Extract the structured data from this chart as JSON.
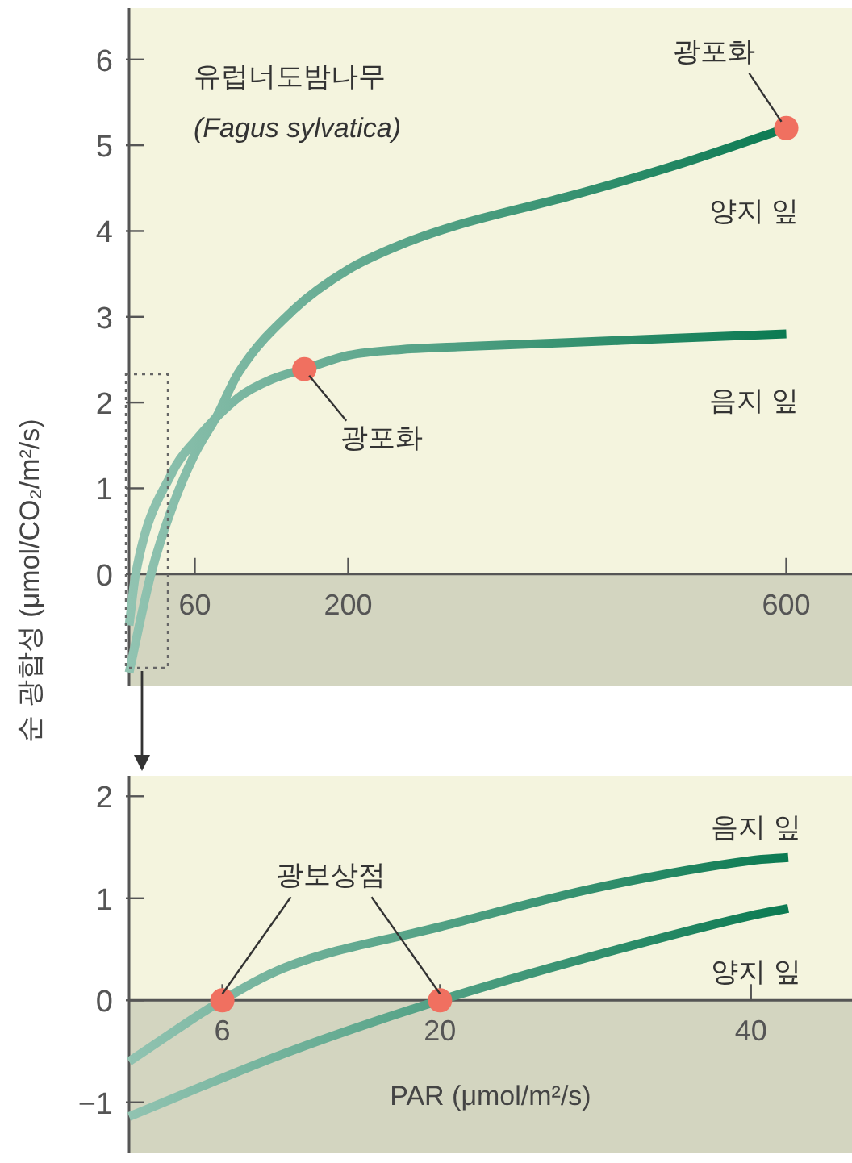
{
  "chart_data": [
    {
      "type": "line",
      "xlim": [
        0,
        660
      ],
      "ylim": [
        -1.3,
        6.6
      ],
      "xticks": [
        60,
        200,
        600
      ],
      "yticks": [
        0,
        1,
        2,
        3,
        4,
        5,
        6
      ],
      "ylabel": "순 광합성 (μmol/CO₂/m²/s)",
      "grid": false,
      "annotations": [
        "유럽너도밤나무",
        "(Fagus sylvatica)",
        {
          "text": "광포화",
          "x": 600,
          "y": 5.2
        },
        {
          "text": "광포화",
          "x": 160,
          "y": 2.39
        }
      ],
      "bands": [
        {
          "axis": "y",
          "from": -1.3,
          "to": 0,
          "color": "#d3d5c0"
        }
      ],
      "series": [
        {
          "name": "양지 잎",
          "color": "#0b7a52",
          "x": [
            0,
            20,
            40,
            60,
            80,
            100,
            150,
            200,
            250,
            300,
            400,
            500,
            600
          ],
          "values": [
            -1.15,
            0,
            0.8,
            1.4,
            1.84,
            2.35,
            3.08,
            3.55,
            3.85,
            4.07,
            4.4,
            4.77,
            5.2
          ]
        },
        {
          "name": "음지 잎",
          "color": "#0b7a52",
          "x": [
            0,
            6,
            40,
            60,
            100,
            130,
            160,
            200,
            250,
            300,
            400,
            500,
            600
          ],
          "values": [
            -0.6,
            0,
            1.2,
            1.55,
            2.06,
            2.27,
            2.39,
            2.55,
            2.62,
            2.65,
            2.7,
            2.75,
            2.8
          ]
        },
        {
          "type": "scatter",
          "marker": "circle",
          "color": "#f07060",
          "x": [
            160,
            600
          ],
          "values": [
            2.39,
            5.2
          ]
        }
      ]
    },
    {
      "type": "line",
      "xlim": [
        0,
        46.5
      ],
      "ylim": [
        -1.5,
        2.2
      ],
      "xticks": [
        6,
        20,
        40
      ],
      "yticks": [
        {
          "value": -1,
          "label": "−1"
        },
        0,
        1,
        2
      ],
      "xlabel": "PAR (μmol/m²/s)",
      "grid": false,
      "annotations": [
        {
          "text": "광보상점",
          "x": 6,
          "y": 0
        }
      ],
      "bands": [
        {
          "axis": "y",
          "from": -1.5,
          "to": 0,
          "color": "#d3d5c0"
        }
      ],
      "series": [
        {
          "name": "음지 잎",
          "color": "#0b7a52",
          "x": [
            0,
            6,
            10,
            20,
            30,
            40,
            42.4
          ],
          "values": [
            -0.6,
            0,
            0.32,
            0.72,
            1.1,
            1.37,
            1.4
          ]
        },
        {
          "name": "양지 잎",
          "color": "#0b7a52",
          "x": [
            0,
            10,
            20,
            30,
            40,
            42.4
          ],
          "values": [
            -1.14,
            -0.52,
            0,
            0.44,
            0.83,
            0.9
          ]
        },
        {
          "type": "scatter",
          "marker": "circle",
          "color": "#f07060",
          "x": [
            6,
            20
          ],
          "values": [
            0,
            0
          ]
        }
      ]
    }
  ]
}
